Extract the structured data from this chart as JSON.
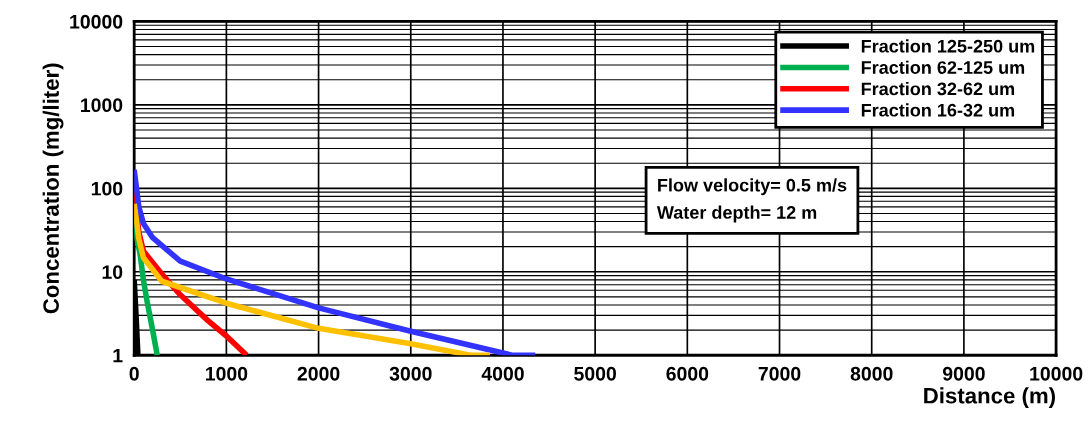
{
  "chart_data": {
    "type": "line",
    "xlabel": "Distance (m)",
    "ylabel": "Concentration (mg/liter)",
    "log": "y",
    "grid": true,
    "legend": "top right",
    "line_style": "solid",
    "marker": "none",
    "xlim": [
      0,
      10000
    ],
    "xticks": [
      0,
      1000,
      2000,
      3000,
      4000,
      5000,
      6000,
      7000,
      8000,
      9000,
      10000
    ],
    "ylim": [
      1,
      10000
    ],
    "yticks": [
      1,
      10,
      100,
      1000,
      10000
    ],
    "annotations": [
      "Flow velocity= 0.5 m/s\nWater depth= 12 m"
    ],
    "series": [
      {
        "name": "Fraction 125-250 um",
        "color": "#000000",
        "x": [
          0,
          20,
          40
        ],
        "values": [
          8,
          3,
          1
        ]
      },
      {
        "name": "Fraction 62-125 um",
        "color": "#00b050",
        "x": [
          0,
          30,
          65,
          100,
          140,
          200,
          250
        ],
        "values": [
          45,
          25,
          16,
          8,
          4.4,
          2,
          1
        ]
      },
      {
        "name": "Fraction 32-62 um",
        "color": "#ff0000",
        "x": [
          0,
          50,
          100,
          300,
          500,
          800,
          1000,
          1220
        ],
        "values": [
          95,
          30,
          17.7,
          9.4,
          5.3,
          2.6,
          1.7,
          1
        ]
      },
      {
        "name": "Fraction 16-32 um",
        "color": "#3333ff",
        "x": [
          0,
          50,
          100,
          200,
          500,
          1000,
          2000,
          3000,
          4100,
          4350
        ],
        "values": [
          166,
          60,
          38,
          25.6,
          13.4,
          8.2,
          3.7,
          1.94,
          1,
          1
        ]
      },
      {
        "color": "#ffc000",
        "x": [
          0,
          50,
          100,
          300,
          1000,
          2000,
          3000,
          3650,
          3860
        ],
        "values": [
          65,
          25,
          14.7,
          7.7,
          4.2,
          2.1,
          1.37,
          1,
          1
        ]
      }
    ]
  }
}
